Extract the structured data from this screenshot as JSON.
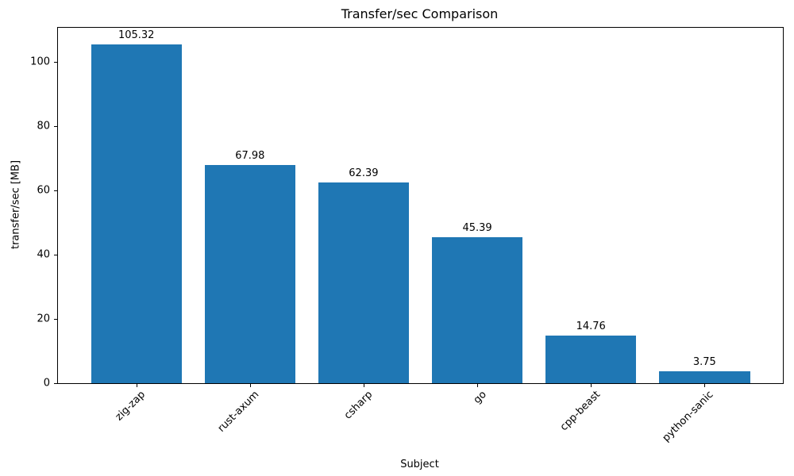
{
  "chart_data": {
    "type": "bar",
    "title": "Transfer/sec Comparison",
    "xlabel": "Subject",
    "ylabel": "transfer/sec [MB]",
    "categories": [
      "zig-zap",
      "rust-axum",
      "csharp",
      "go",
      "cpp-beast",
      "python-sanic"
    ],
    "values": [
      105.32,
      67.98,
      62.39,
      45.39,
      14.76,
      3.75
    ],
    "bar_value_labels": [
      "105.32",
      "67.98",
      "62.39",
      "45.39",
      "14.76",
      "3.75"
    ],
    "yticks": [
      0,
      20,
      40,
      60,
      80,
      100
    ],
    "ylim": [
      0,
      110.59
    ],
    "grid": false,
    "legend_position": "none",
    "bar_color": "#1f77b4",
    "text_color": "#000000",
    "background_color": "#ffffff"
  }
}
